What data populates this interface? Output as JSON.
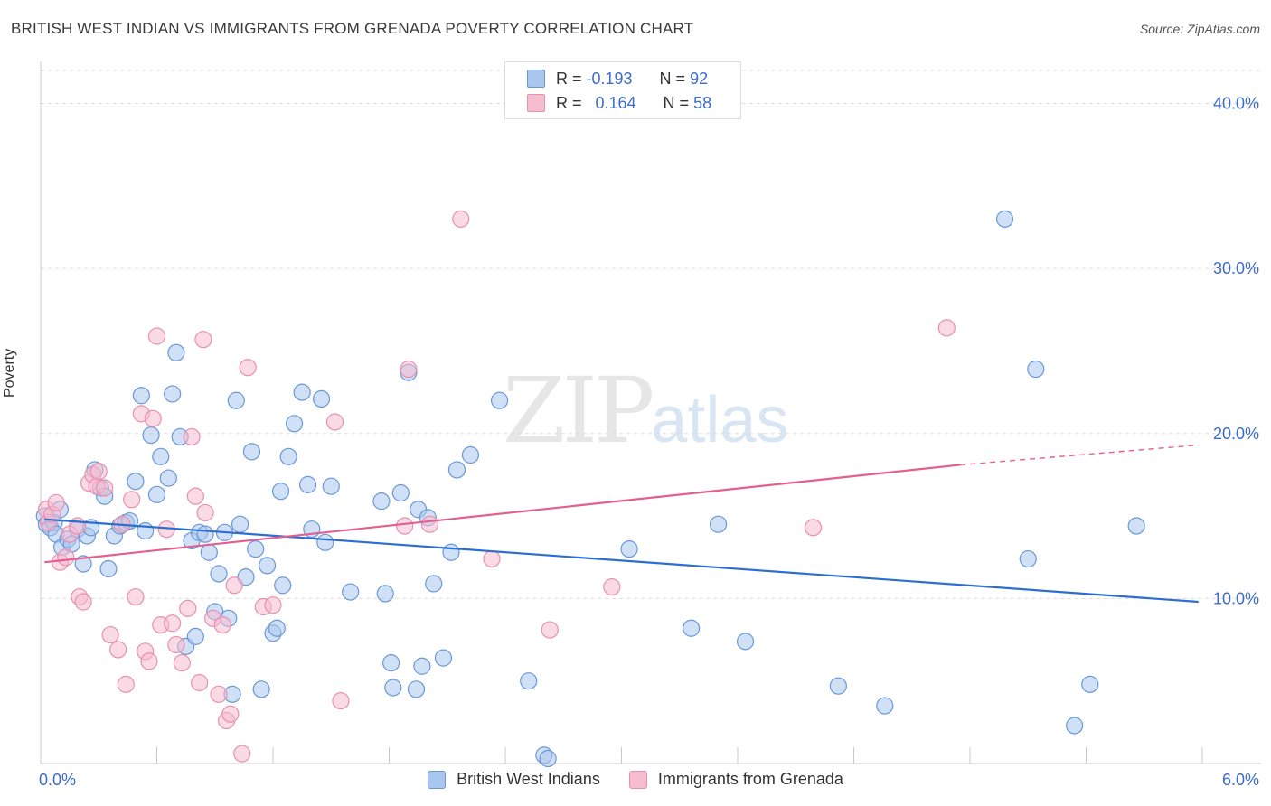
{
  "title": "BRITISH WEST INDIAN VS IMMIGRANTS FROM GRENADA POVERTY CORRELATION CHART",
  "source": "Source: ZipAtlas.com",
  "watermark": {
    "zip": "ZIP",
    "atlas": "atlas"
  },
  "stats": {
    "r_label": "R =",
    "n_label": "N =",
    "rows": [
      {
        "r": "-0.193",
        "n": "92"
      },
      {
        "r": "0.164",
        "n": "58"
      }
    ]
  },
  "colors": {
    "blue_fill": "#a9c6ef",
    "blue_stroke": "#6a98d6",
    "blue_line": "#2d6fce",
    "pink_fill": "#f6bcd0",
    "pink_stroke": "#e890b0",
    "pink_line": "#e35f90",
    "tick_text": "#3d6cc8",
    "grid": "#dddddd"
  },
  "chart_data": {
    "type": "scatter",
    "title": "BRITISH WEST INDIAN VS IMMIGRANTS FROM GRENADA POVERTY CORRELATION CHART",
    "xlabel": "",
    "ylabel": "Poverty",
    "xlim": [
      0,
      6.0
    ],
    "ylim": [
      0,
      42
    ],
    "x_tick_labels": [
      "0.0%",
      "6.0%"
    ],
    "y_ticks": [
      10,
      20,
      30,
      40
    ],
    "y_tick_labels": [
      "10.0%",
      "20.0%",
      "30.0%",
      "40.0%"
    ],
    "grid": true,
    "legend_position": "bottom",
    "series": [
      {
        "name": "British West Indians",
        "points": [
          [
            0.02,
            15.0
          ],
          [
            0.03,
            14.5
          ],
          [
            0.05,
            14.3
          ],
          [
            0.07,
            14.6
          ],
          [
            0.08,
            13.9
          ],
          [
            0.1,
            15.4
          ],
          [
            0.11,
            13.1
          ],
          [
            0.14,
            13.6
          ],
          [
            0.16,
            13.3
          ],
          [
            0.19,
            14.2
          ],
          [
            0.22,
            12.1
          ],
          [
            0.24,
            13.8
          ],
          [
            0.26,
            14.3
          ],
          [
            0.28,
            17.8
          ],
          [
            0.31,
            16.7
          ],
          [
            0.33,
            16.2
          ],
          [
            0.35,
            11.8
          ],
          [
            0.38,
            13.8
          ],
          [
            0.41,
            14.4
          ],
          [
            0.44,
            14.6
          ],
          [
            0.46,
            14.7
          ],
          [
            0.49,
            17.1
          ],
          [
            0.52,
            22.3
          ],
          [
            0.54,
            14.1
          ],
          [
            0.57,
            19.9
          ],
          [
            0.6,
            16.3
          ],
          [
            0.62,
            18.6
          ],
          [
            0.66,
            17.3
          ],
          [
            0.68,
            22.4
          ],
          [
            0.7,
            24.9
          ],
          [
            0.72,
            19.8
          ],
          [
            0.75,
            7.1
          ],
          [
            0.78,
            13.5
          ],
          [
            0.8,
            7.7
          ],
          [
            0.82,
            14.0
          ],
          [
            0.85,
            13.9
          ],
          [
            0.87,
            12.8
          ],
          [
            0.9,
            9.2
          ],
          [
            0.92,
            11.5
          ],
          [
            0.95,
            14.0
          ],
          [
            0.97,
            8.8
          ],
          [
            0.99,
            4.2
          ],
          [
            1.01,
            22.0
          ],
          [
            1.03,
            14.5
          ],
          [
            1.06,
            11.3
          ],
          [
            1.09,
            18.9
          ],
          [
            1.11,
            13.0
          ],
          [
            1.14,
            4.5
          ],
          [
            1.17,
            12.0
          ],
          [
            1.2,
            7.9
          ],
          [
            1.22,
            8.2
          ],
          [
            1.24,
            16.5
          ],
          [
            1.25,
            10.8
          ],
          [
            1.28,
            18.6
          ],
          [
            1.31,
            20.6
          ],
          [
            1.35,
            22.5
          ],
          [
            1.38,
            16.9
          ],
          [
            1.4,
            14.2
          ],
          [
            1.45,
            22.1
          ],
          [
            1.47,
            13.4
          ],
          [
            1.5,
            16.8
          ],
          [
            1.6,
            10.4
          ],
          [
            1.76,
            15.9
          ],
          [
            1.78,
            10.3
          ],
          [
            1.81,
            6.1
          ],
          [
            1.82,
            4.6
          ],
          [
            1.86,
            16.4
          ],
          [
            1.9,
            23.7
          ],
          [
            1.94,
            4.5
          ],
          [
            1.95,
            15.4
          ],
          [
            1.97,
            5.9
          ],
          [
            2.0,
            14.9
          ],
          [
            2.03,
            10.9
          ],
          [
            2.08,
            6.4
          ],
          [
            2.12,
            12.8
          ],
          [
            2.15,
            17.8
          ],
          [
            2.22,
            18.7
          ],
          [
            2.37,
            22.0
          ],
          [
            2.52,
            5.0
          ],
          [
            2.6,
            0.5
          ],
          [
            2.62,
            0.3
          ],
          [
            3.04,
            13.0
          ],
          [
            3.36,
            8.2
          ],
          [
            3.5,
            14.5
          ],
          [
            3.64,
            7.4
          ],
          [
            4.12,
            4.7
          ],
          [
            4.36,
            3.5
          ],
          [
            4.98,
            33.0
          ],
          [
            5.1,
            12.4
          ],
          [
            5.14,
            23.9
          ],
          [
            5.34,
            2.3
          ],
          [
            5.42,
            4.8
          ],
          [
            5.66,
            14.4
          ]
        ]
      },
      {
        "name": "Immigrants from Grenada",
        "points": [
          [
            0.03,
            15.4
          ],
          [
            0.04,
            14.6
          ],
          [
            0.06,
            15.1
          ],
          [
            0.08,
            15.8
          ],
          [
            0.1,
            12.2
          ],
          [
            0.13,
            12.5
          ],
          [
            0.15,
            13.9
          ],
          [
            0.19,
            14.4
          ],
          [
            0.2,
            10.1
          ],
          [
            0.22,
            9.8
          ],
          [
            0.25,
            17.0
          ],
          [
            0.27,
            17.5
          ],
          [
            0.29,
            16.8
          ],
          [
            0.3,
            17.7
          ],
          [
            0.33,
            16.7
          ],
          [
            0.36,
            7.8
          ],
          [
            0.4,
            6.9
          ],
          [
            0.42,
            14.5
          ],
          [
            0.44,
            4.8
          ],
          [
            0.47,
            16.0
          ],
          [
            0.49,
            10.1
          ],
          [
            0.52,
            21.2
          ],
          [
            0.54,
            6.8
          ],
          [
            0.56,
            6.2
          ],
          [
            0.58,
            20.9
          ],
          [
            0.6,
            25.9
          ],
          [
            0.62,
            8.4
          ],
          [
            0.65,
            14.2
          ],
          [
            0.68,
            8.5
          ],
          [
            0.7,
            7.2
          ],
          [
            0.73,
            6.1
          ],
          [
            0.76,
            9.4
          ],
          [
            0.78,
            19.8
          ],
          [
            0.8,
            16.2
          ],
          [
            0.82,
            4.9
          ],
          [
            0.84,
            25.7
          ],
          [
            0.85,
            15.2
          ],
          [
            0.89,
            8.8
          ],
          [
            0.92,
            4.2
          ],
          [
            0.94,
            8.4
          ],
          [
            0.96,
            2.6
          ],
          [
            0.98,
            3.0
          ],
          [
            1.0,
            10.8
          ],
          [
            1.04,
            0.6
          ],
          [
            1.07,
            24.0
          ],
          [
            1.15,
            9.5
          ],
          [
            1.2,
            9.6
          ],
          [
            1.52,
            20.7
          ],
          [
            1.55,
            3.8
          ],
          [
            1.88,
            14.4
          ],
          [
            1.9,
            23.9
          ],
          [
            2.01,
            14.5
          ],
          [
            2.17,
            33.0
          ],
          [
            2.33,
            12.4
          ],
          [
            2.63,
            8.1
          ],
          [
            2.95,
            10.7
          ],
          [
            3.99,
            14.3
          ],
          [
            4.68,
            26.4
          ]
        ]
      }
    ],
    "trendlines": [
      {
        "series": "British West Indians",
        "x": [
          0.02,
          5.98
        ],
        "y": [
          14.8,
          9.8
        ]
      },
      {
        "series": "Immigrants from Grenada",
        "x": [
          0.02,
          4.75
        ],
        "y": [
          12.2,
          18.1
        ],
        "dashed_extension_to_x": 5.98,
        "dashed_extension_y": 19.3
      }
    ]
  },
  "legend": {
    "items": [
      "British West Indians",
      "Immigrants from Grenada"
    ]
  }
}
